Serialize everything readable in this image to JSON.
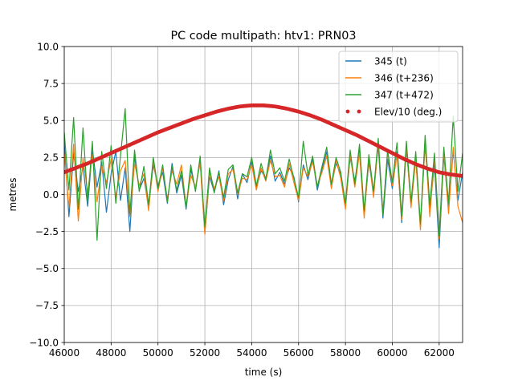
{
  "chart_data": {
    "type": "line",
    "title": "PC code multipath: htv1: PRN03",
    "xlabel": "time (s)",
    "ylabel": "metres",
    "xlim": [
      46000,
      63000
    ],
    "ylim": [
      -10.0,
      10.0
    ],
    "xticks": [
      46000,
      48000,
      50000,
      52000,
      54000,
      56000,
      58000,
      60000,
      62000
    ],
    "xtick_labels": [
      "46000",
      "48000",
      "50000",
      "52000",
      "54000",
      "56000",
      "58000",
      "60000",
      "62000"
    ],
    "yticks": [
      -10.0,
      -7.5,
      -5.0,
      -2.5,
      0.0,
      2.5,
      5.0,
      7.5,
      10.0
    ],
    "ytick_labels": [
      "−10.0",
      "−7.5",
      "−5.0",
      "−2.5",
      "0.0",
      "2.5",
      "5.0",
      "7.5",
      "10.0"
    ],
    "grid": true,
    "legend_position": "top-right",
    "series": [
      {
        "name": "345 (t)",
        "style": "line",
        "color": "#1f77b4",
        "x": [
          46000,
          46200,
          46400,
          46600,
          46800,
          47000,
          47200,
          47400,
          47600,
          47800,
          48000,
          48200,
          48400,
          48600,
          48800,
          49000,
          49200,
          49400,
          49600,
          49800,
          50000,
          50200,
          50400,
          50600,
          50800,
          51000,
          51200,
          51400,
          51600,
          51800,
          52000,
          52200,
          52400,
          52600,
          52800,
          53000,
          53200,
          53400,
          53600,
          53800,
          54000,
          54200,
          54400,
          54600,
          54800,
          55000,
          55200,
          55400,
          55600,
          55800,
          56000,
          56200,
          56400,
          56600,
          56800,
          57000,
          57200,
          57400,
          57600,
          57800,
          58000,
          58200,
          58400,
          58600,
          58800,
          59000,
          59200,
          59400,
          59600,
          59800,
          60000,
          60200,
          60400,
          60600,
          60800,
          61000,
          61200,
          61400,
          61600,
          61800,
          62000,
          62200,
          62400,
          62600,
          62800,
          63000
        ],
        "y": [
          3.5,
          -1.5,
          2.8,
          0.2,
          1.9,
          -0.8,
          3.1,
          0.5,
          2.2,
          -1.2,
          1.4,
          2.9,
          -0.4,
          1.8,
          -2.5,
          2.6,
          0.3,
          1.1,
          -0.9,
          2.0,
          0.6,
          1.5,
          -0.6,
          2.1,
          0.1,
          1.3,
          -1.0,
          1.7,
          0.4,
          2.3,
          -2.6,
          1.2,
          0.2,
          1.6,
          -0.7,
          1.0,
          1.9,
          -0.3,
          1.4,
          0.8,
          2.2,
          0.5,
          1.6,
          1.1,
          2.6,
          0.9,
          1.5,
          0.7,
          1.8,
          1.2,
          -0.5,
          2.0,
          1.0,
          2.4,
          0.3,
          1.7,
          2.9,
          0.6,
          2.1,
          1.4,
          -0.8,
          2.5,
          0.9,
          3.0,
          -1.3,
          2.2,
          0.1,
          3.3,
          -1.6,
          2.4,
          0.4,
          2.9,
          -1.9,
          3.1,
          -0.6,
          2.6,
          -2.2,
          3.4,
          -0.9,
          2.0,
          -3.6,
          2.7,
          -1.1,
          3.0,
          -0.4,
          1.5
        ]
      },
      {
        "name": "346 (t+236)",
        "style": "line",
        "color": "#ff7f0e",
        "x": [
          46000,
          46200,
          46400,
          46600,
          46800,
          47000,
          47200,
          47400,
          47600,
          47800,
          48000,
          48200,
          48400,
          48600,
          48800,
          49000,
          49200,
          49400,
          49600,
          49800,
          50000,
          50200,
          50400,
          50600,
          50800,
          51000,
          51200,
          51400,
          51600,
          51800,
          52000,
          52200,
          52400,
          52600,
          52800,
          53000,
          53200,
          53400,
          53600,
          53800,
          54000,
          54200,
          54400,
          54600,
          54800,
          55000,
          55200,
          55400,
          55600,
          55800,
          56000,
          56200,
          56400,
          56600,
          56800,
          57000,
          57200,
          57400,
          57600,
          57800,
          58000,
          58200,
          58400,
          58600,
          58800,
          59000,
          59200,
          59400,
          59600,
          59800,
          60000,
          60200,
          60400,
          60600,
          60800,
          61000,
          61200,
          61400,
          61600,
          61800,
          62000,
          62200,
          62400,
          62600,
          62800,
          63000
        ],
        "y": [
          2.8,
          -0.9,
          3.4,
          -1.8,
          2.5,
          0.1,
          2.7,
          -0.5,
          1.9,
          0.8,
          2.4,
          -0.2,
          1.6,
          2.3,
          -1.5,
          2.1,
          0.6,
          1.4,
          -1.1,
          2.3,
          0.2,
          1.8,
          -0.3,
          1.6,
          0.7,
          2.0,
          -0.8,
          1.3,
          0.5,
          2.1,
          -2.7,
          1.5,
          0.4,
          1.2,
          -0.4,
          1.4,
          1.7,
          0.0,
          1.1,
          1.0,
          2.0,
          0.3,
          1.8,
          0.9,
          2.3,
          1.2,
          1.3,
          0.5,
          2.1,
          0.8,
          -0.4,
          1.8,
          1.2,
          2.2,
          0.6,
          1.5,
          2.6,
          0.4,
          2.3,
          1.1,
          -1.0,
          2.7,
          0.5,
          2.8,
          -1.6,
          2.5,
          -0.2,
          3.5,
          -1.2,
          2.9,
          0.6,
          2.7,
          -1.7,
          3.3,
          -0.9,
          2.4,
          -2.4,
          3.7,
          -1.5,
          2.6,
          -3.0,
          2.9,
          -1.3,
          3.2,
          -0.8,
          -1.9
        ]
      },
      {
        "name": "347 (t+472)",
        "style": "line",
        "color": "#2ca02c",
        "x": [
          46000,
          46200,
          46400,
          46600,
          46800,
          47000,
          47200,
          47400,
          47600,
          47800,
          48000,
          48200,
          48400,
          48600,
          48800,
          49000,
          49200,
          49400,
          49600,
          49800,
          50000,
          50200,
          50400,
          50600,
          50800,
          51000,
          51200,
          51400,
          51600,
          51800,
          52000,
          52200,
          52400,
          52600,
          52800,
          53000,
          53200,
          53400,
          53600,
          53800,
          54000,
          54200,
          54400,
          54600,
          54800,
          55000,
          55200,
          55400,
          55600,
          55800,
          56000,
          56200,
          56400,
          56600,
          56800,
          57000,
          57200,
          57400,
          57600,
          57800,
          58000,
          58200,
          58400,
          58600,
          58800,
          59000,
          59200,
          59400,
          59600,
          59800,
          60000,
          60200,
          60400,
          60600,
          60800,
          61000,
          61200,
          61400,
          61600,
          61800,
          62000,
          62200,
          62400,
          62600,
          62800,
          63000
        ],
        "y": [
          4.2,
          0.3,
          5.2,
          -1.0,
          4.5,
          -0.5,
          3.6,
          -3.1,
          2.9,
          0.4,
          3.3,
          -0.6,
          2.6,
          5.8,
          -1.3,
          3.0,
          0.2,
          1.9,
          -0.7,
          2.5,
          0.4,
          2.0,
          -0.5,
          1.9,
          0.3,
          1.6,
          -0.9,
          2.0,
          0.2,
          2.6,
          -2.2,
          1.8,
          0.1,
          1.5,
          -0.2,
          1.7,
          2.0,
          0.1,
          1.4,
          1.2,
          2.5,
          0.6,
          2.1,
          1.0,
          3.0,
          1.4,
          1.8,
          0.9,
          2.4,
          1.1,
          -0.2,
          3.6,
          1.3,
          2.6,
          0.5,
          1.9,
          3.2,
          0.7,
          2.5,
          1.5,
          -0.6,
          3.0,
          0.7,
          3.4,
          -1.1,
          2.7,
          0.2,
          3.8,
          -1.4,
          3.0,
          0.8,
          3.5,
          -1.5,
          3.6,
          -0.5,
          2.9,
          -2.0,
          4.0,
          -0.7,
          2.8,
          -2.8,
          3.2,
          -0.6,
          5.3,
          0.2,
          2.8
        ]
      },
      {
        "name": "Elev/10 (deg.)",
        "style": "dots",
        "color": "#d62728",
        "x": [
          46000,
          46500,
          47000,
          47500,
          48000,
          48500,
          49000,
          49500,
          50000,
          50500,
          51000,
          51500,
          52000,
          52500,
          53000,
          53500,
          54000,
          54500,
          55000,
          55500,
          56000,
          56500,
          57000,
          57500,
          58000,
          58500,
          59000,
          59500,
          60000,
          60500,
          61000,
          61500,
          62000,
          62500,
          63000
        ],
        "y": [
          1.5,
          1.8,
          2.1,
          2.45,
          2.8,
          3.15,
          3.5,
          3.85,
          4.2,
          4.5,
          4.8,
          5.1,
          5.35,
          5.6,
          5.8,
          5.95,
          6.02,
          6.02,
          5.95,
          5.8,
          5.6,
          5.35,
          5.05,
          4.7,
          4.35,
          4.0,
          3.6,
          3.2,
          2.8,
          2.4,
          2.05,
          1.75,
          1.5,
          1.35,
          1.25
        ]
      }
    ]
  }
}
